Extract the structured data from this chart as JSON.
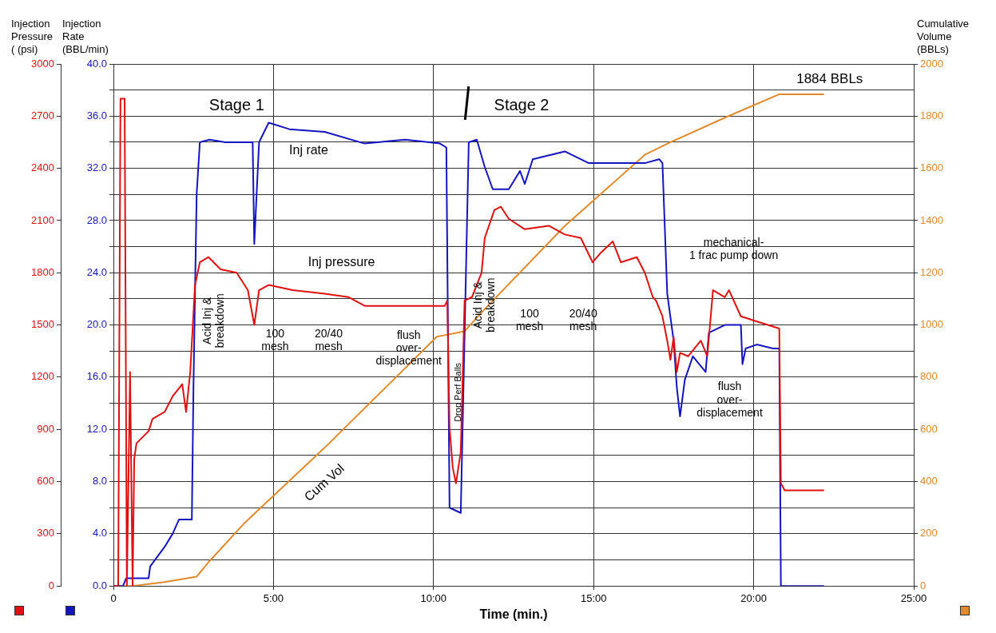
{
  "chart_data": {
    "type": "line",
    "xlabel": "Time (min.)",
    "ylabel": "Injection Pressure ( (psi)",
    "y2label": "Injection Rate (BBL/min)",
    "y3label": "Cumulative Volume (BBLs)",
    "xlim": [
      0,
      25
    ],
    "xticks": [
      0,
      {
        "value": 5,
        "label": "5:00"
      },
      {
        "value": 10,
        "label": "10:00"
      },
      {
        "value": 15,
        "label": "15:00"
      },
      {
        "value": 20,
        "label": "20:00"
      },
      {
        "value": 25,
        "label": "25:00"
      }
    ],
    "ylim": [
      0,
      3000
    ],
    "yticks": [
      0,
      300,
      600,
      900,
      1200,
      1500,
      1800,
      2100,
      2400,
      2700,
      3000
    ],
    "y2lim": [
      0,
      40
    ],
    "y2ticks": [
      {
        "value": 0,
        "label": "0.0"
      },
      {
        "value": 2,
        "label": null
      },
      {
        "value": 4,
        "label": "4.0"
      },
      {
        "value": 6,
        "label": null
      },
      {
        "value": 8,
        "label": "8.0"
      },
      {
        "value": 10,
        "label": null
      },
      {
        "value": 12,
        "label": "12.0"
      },
      {
        "value": 14,
        "label": null
      },
      {
        "value": 16,
        "label": "16.0"
      },
      {
        "value": 18,
        "label": null
      },
      {
        "value": 20,
        "label": "20.0"
      },
      {
        "value": 22,
        "label": null
      },
      {
        "value": 24,
        "label": "24.0"
      },
      {
        "value": 26,
        "label": null
      },
      {
        "value": 28,
        "label": "28.0"
      },
      {
        "value": 30,
        "label": null
      },
      {
        "value": 32,
        "label": "32.0"
      },
      {
        "value": 34,
        "label": null
      },
      {
        "value": 36,
        "label": "36.0"
      },
      {
        "value": 38,
        "label": null
      },
      {
        "value": 40,
        "label": "40.0"
      }
    ],
    "y3lim": [
      0,
      2000
    ],
    "y3ticks": [
      0,
      200,
      400,
      600,
      800,
      1000,
      1200,
      1400,
      1600,
      1800,
      2000
    ],
    "grid": true,
    "legend": false,
    "marker": "none",
    "line_style": "solid",
    "series": [
      {
        "name": "Inj pressure",
        "color": "#e01010",
        "x": [
          0,
          0.15,
          0.22,
          0.35,
          0.42,
          0.52,
          0.6,
          0.65,
          0.72,
          1.1,
          1.22,
          1.6,
          1.85,
          2.15,
          2.27,
          2.4,
          2.55,
          2.7,
          2.97,
          3.35,
          3.85,
          4.2,
          4.4,
          4.55,
          4.85,
          5.6,
          6.6,
          7.35,
          7.85,
          9.1,
          10.35,
          10.43,
          10.5,
          10.6,
          10.7,
          10.85,
          10.97,
          11.2,
          11.5,
          11.6,
          11.9,
          12.1,
          12.35,
          12.85,
          13.6,
          14.1,
          14.6,
          14.97,
          15.2,
          15.6,
          15.85,
          16.35,
          16.6,
          16.85,
          16.95,
          17.15,
          17.3,
          17.4,
          17.5,
          17.6,
          17.7,
          17.95,
          18.35,
          18.55,
          18.73,
          19.1,
          19.23,
          19.6,
          20.1,
          20.8,
          20.85,
          20.97,
          22.2
        ],
        "values": [
          0,
          0,
          2800,
          2800,
          0,
          1230,
          0,
          730,
          820,
          890,
          960,
          1000,
          1090,
          1160,
          1000,
          1230,
          1730,
          1860,
          1890,
          1820,
          1800,
          1700,
          1500,
          1700,
          1730,
          1700,
          1680,
          1660,
          1610,
          1610,
          1610,
          1640,
          910,
          680,
          590,
          770,
          1640,
          1660,
          1800,
          2000,
          2160,
          2180,
          2110,
          2050,
          2070,
          2020,
          2000,
          1860,
          1910,
          1980,
          1860,
          1890,
          1800,
          1660,
          1640,
          1550,
          1410,
          1300,
          1430,
          1230,
          1340,
          1320,
          1410,
          1320,
          1700,
          1660,
          1700,
          1550,
          1520,
          1480,
          590,
          550,
          550
        ]
      },
      {
        "name": "Inj rate",
        "color": "#1414c0",
        "axis": "y2",
        "x": [
          0,
          0.3,
          0.4,
          0.6,
          1.1,
          1.15,
          1.6,
          1.85,
          2.05,
          2.45,
          2.5,
          2.6,
          2.7,
          3.0,
          3.5,
          4.35,
          4.4,
          4.55,
          4.85,
          5.5,
          6.6,
          7.85,
          9.1,
          10.2,
          10.4,
          10.5,
          10.85,
          11.1,
          11.35,
          11.6,
          11.85,
          12.35,
          12.7,
          12.85,
          13.1,
          14.1,
          14.85,
          16.6,
          17.05,
          17.15,
          17.3,
          17.5,
          17.6,
          17.7,
          17.85,
          18.1,
          18.5,
          18.6,
          19.1,
          19.6,
          19.65,
          19.75,
          20.1,
          20.6,
          20.8,
          20.85,
          22.2
        ],
        "values": [
          0,
          0,
          0.6,
          0.6,
          0.6,
          1.5,
          3.0,
          4.0,
          5.1,
          5.1,
          15.2,
          30,
          34.0,
          34.2,
          34.0,
          34.0,
          26.2,
          34.0,
          35.5,
          35.0,
          34.8,
          33.9,
          34.2,
          33.9,
          33.6,
          6,
          5.6,
          34,
          34.2,
          32.1,
          30.4,
          30.4,
          31.8,
          30.8,
          32.7,
          33.3,
          32.4,
          32.4,
          32.7,
          32.4,
          22.4,
          18.8,
          15.2,
          13.0,
          15.8,
          17.6,
          16.4,
          19.4,
          20,
          20,
          17.0,
          18.2,
          18.5,
          18.2,
          18.2,
          0,
          0
        ]
      },
      {
        "name": "Cum Vol",
        "color": "#e08a2c",
        "axis": "y3",
        "x": [
          0,
          0.6,
          1.6,
          2.6,
          2.97,
          4.1,
          6.6,
          9.1,
          10.1,
          10.48,
          10.97,
          11.6,
          14.1,
          16.6,
          17.35,
          19.1,
          20.8,
          22.2
        ],
        "values": [
          0,
          0,
          15,
          36,
          91,
          242,
          530,
          833,
          955,
          964,
          976,
          1061,
          1379,
          1652,
          1697,
          1794,
          1884,
          1884
        ]
      }
    ],
    "annotations": [
      "Stage 1",
      "Stage 2",
      "Acid Inj & breakdown",
      "100 mesh",
      "20/40 mesh",
      "flush over-displacement",
      "Drop Perf Balls",
      "Acid Inj & breakdown",
      "100 mesh",
      "20/40 mesh",
      "mechanical-1 frac pump down",
      "flush over-displacement",
      "1884 BBLs"
    ]
  }
}
